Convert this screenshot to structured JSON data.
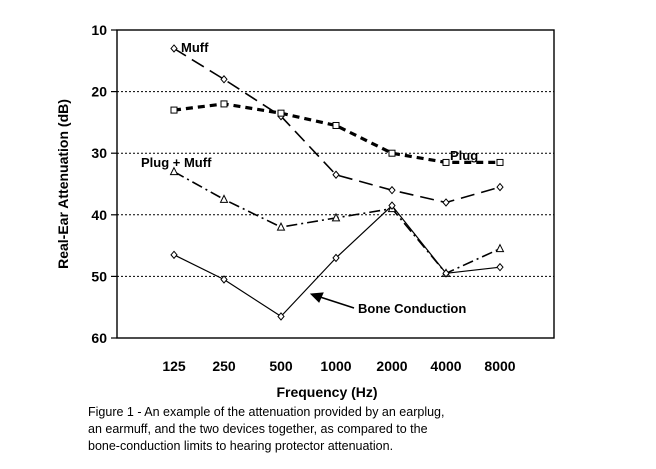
{
  "chart_data": {
    "type": "line",
    "title": "",
    "xlabel": "Frequency (Hz)",
    "ylabel": "Real-Ear Attenuation (dB)",
    "categories": [
      "125",
      "250",
      "500",
      "1000",
      "2000",
      "4000",
      "8000"
    ],
    "ylim": [
      10,
      60
    ],
    "y_axis_inverted": true,
    "yticks": [
      "10",
      "20",
      "30",
      "40",
      "50",
      "60"
    ],
    "grid": "horizontal dotted",
    "legend": "none (inline labels)",
    "series": [
      {
        "name": "Muff",
        "values": [
          13,
          18,
          24,
          33.5,
          36,
          38,
          35.5
        ],
        "style": "long-dash",
        "marker": "diamond",
        "label_position": "near-125"
      },
      {
        "name": "Plug",
        "values": [
          23,
          22,
          23.5,
          25.5,
          30,
          31.5,
          31.5
        ],
        "style": "heavy-dash",
        "marker": "square",
        "label_position": "near-4000"
      },
      {
        "name": "Plug + Muff",
        "values": [
          33,
          37.5,
          42,
          40.5,
          39,
          49.5,
          45.5
        ],
        "style": "dash-dot",
        "marker": "triangle",
        "label_position": "near-125"
      },
      {
        "name": "Bone Conduction",
        "values": [
          46.5,
          50.5,
          56.5,
          47,
          38.5,
          49.5,
          48.5
        ],
        "style": "solid",
        "marker": "diamond",
        "label_position": "arrow-to-500-1000"
      }
    ],
    "annotations": [
      "Muff",
      "Plug",
      "Plug + Muff",
      "Bone Conduction"
    ]
  },
  "caption": {
    "lines": [
      "Figure 1 - An example of the attenuation provided by an earplug,",
      "an earmuff, and the two devices together, as compared to the",
      "bone-conduction limits to hearing protector attenuation."
    ]
  }
}
